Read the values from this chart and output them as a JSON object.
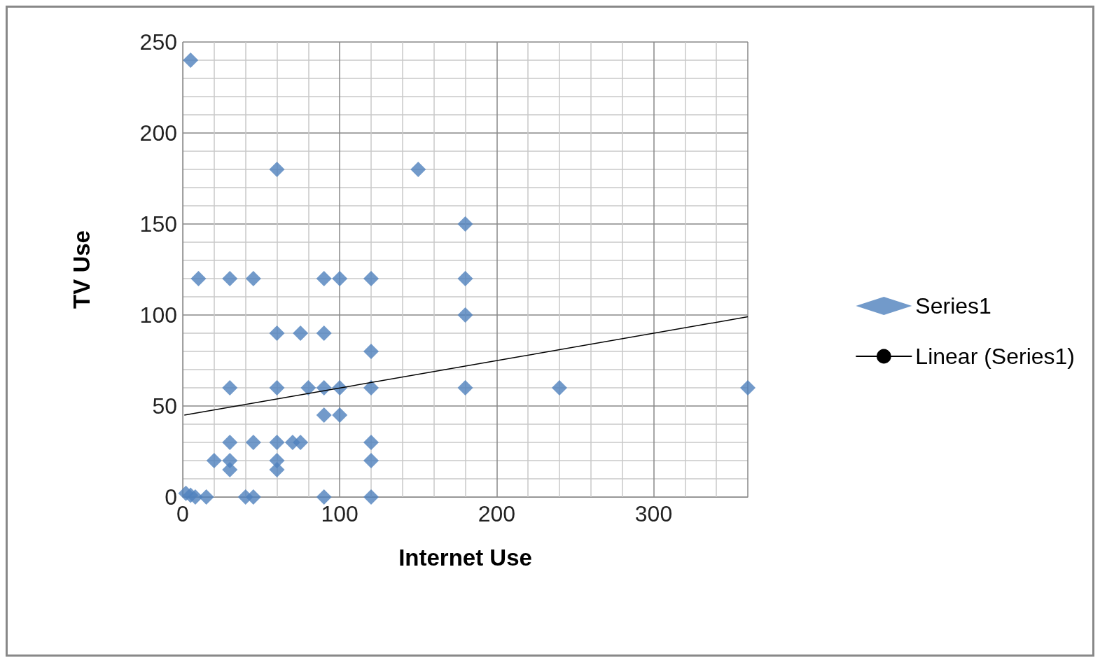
{
  "chart_data": {
    "type": "scatter",
    "xlabel": "Internet Use",
    "ylabel": "TV Use",
    "series": [
      {
        "name": "Series1",
        "color": "#4f81bd",
        "marker": "diamond",
        "x": [
          5,
          60,
          150,
          180,
          180,
          180,
          10,
          30,
          45,
          90,
          100,
          120,
          60,
          75,
          90,
          120,
          30,
          60,
          80,
          90,
          100,
          120,
          180,
          240,
          360,
          90,
          100,
          30,
          45,
          60,
          70,
          75,
          120,
          20,
          30,
          60,
          120,
          30,
          60,
          2,
          5,
          8,
          15,
          40,
          45,
          90,
          120
        ],
        "values": [
          240,
          180,
          180,
          150,
          120,
          100,
          120,
          120,
          120,
          120,
          120,
          120,
          90,
          90,
          90,
          80,
          60,
          60,
          60,
          60,
          60,
          60,
          60,
          60,
          60,
          45,
          45,
          30,
          30,
          30,
          30,
          30,
          30,
          20,
          20,
          20,
          20,
          15,
          15,
          2,
          1,
          0,
          0,
          0,
          0,
          0,
          0
        ]
      },
      {
        "name": "Linear (Series1)",
        "type": "line",
        "color": "#000000",
        "marker": "none",
        "x": [
          1,
          360
        ],
        "values": [
          45,
          99
        ]
      }
    ],
    "xlim": [
      0,
      360
    ],
    "xticks": [
      0,
      100,
      200,
      300
    ],
    "ylim": [
      0,
      250
    ],
    "yticks": [
      0,
      50,
      100,
      150,
      200,
      250
    ],
    "grid": true,
    "legend": "right"
  }
}
